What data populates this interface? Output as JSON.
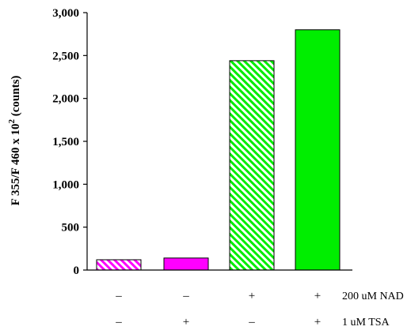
{
  "chart_data": {
    "type": "bar",
    "ylabel_main": "F 355/F 460 x 10",
    "ylabel_sup": "2",
    "ylabel_unit": " (counts)",
    "ylim": [
      0,
      3000
    ],
    "yticks": [
      "0",
      "500",
      "1,000",
      "1,500",
      "2,000",
      "2,500",
      "3,000"
    ],
    "ytick_values": [
      0,
      500,
      1000,
      1500,
      2000,
      2500,
      3000
    ],
    "bars": [
      {
        "value": 120,
        "color": "#ff00ff",
        "fill": "hatched"
      },
      {
        "value": 140,
        "color": "#ff00ff",
        "fill": "solid"
      },
      {
        "value": 2440,
        "color": "#00ee00",
        "fill": "hatched"
      },
      {
        "value": 2800,
        "color": "#00ee00",
        "fill": "solid"
      }
    ],
    "conditions": [
      {
        "label": "200 uM NAD",
        "marks": [
          "–",
          "–",
          "+",
          "+"
        ]
      },
      {
        "label": "1 uM TSA",
        "marks": [
          "–",
          "+",
          "–",
          "+"
        ]
      }
    ]
  }
}
